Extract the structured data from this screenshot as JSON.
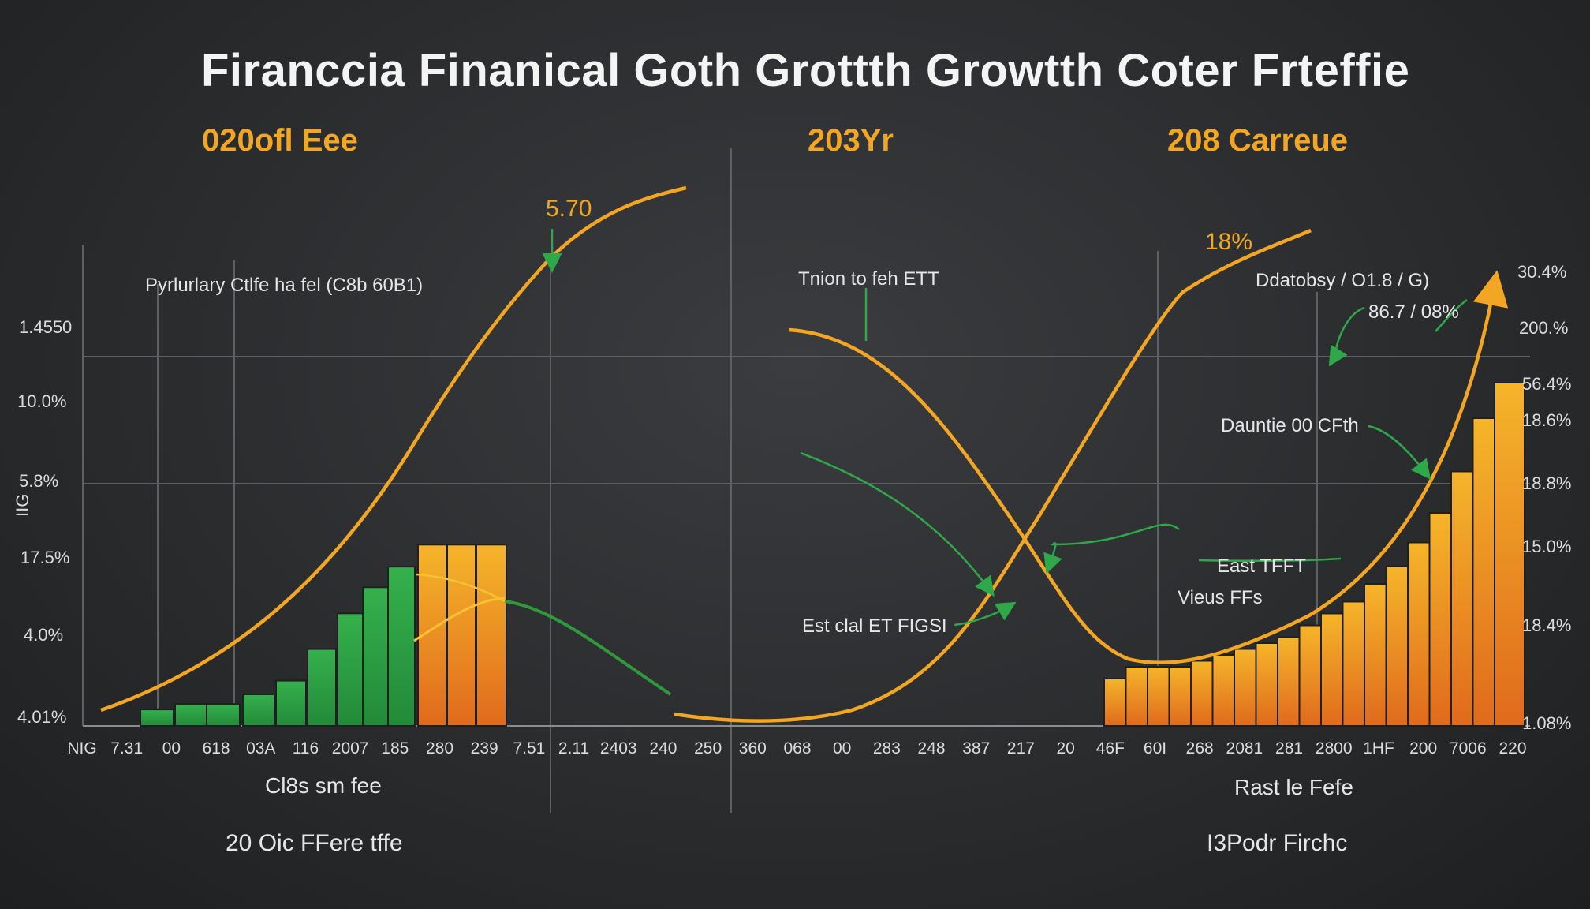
{
  "colors": {
    "orange": "#f2a623",
    "orange_dark": "#e06a1c",
    "green": "#2faa48",
    "green_line": "#2f9a3c",
    "grid": "#6a6c70",
    "text": "#e6e6e6"
  },
  "title": "Firanccia Finanical Goth Grottth Growtth Coter Frteffie",
  "section_headers": [
    "020ofl Eee",
    "203Yr",
    "208 Carreue"
  ],
  "top_value_labels": [
    "5.70",
    "18%"
  ],
  "annotations": [
    "Pyrlurlary Ctlfe ha fel (C8b 60B1)",
    "Tnion to feh ETT",
    "Ddatobsy / O1.8 / G)",
    "86.7 / 08%",
    "Dauntie 00 CFth",
    "East TFFT",
    "Vieus FFs",
    "Est clal ET FIGSI"
  ],
  "left_axis_labels": [
    "1.4550",
    "10.0%",
    "5.8%",
    "17.5%",
    "4.0%",
    "4.01%"
  ],
  "left_axis_side_label": "IIG",
  "right_axis_labels": [
    "30.4%",
    "200.%",
    "56.4%",
    "18.6%",
    "18.8%",
    "15.0%",
    "18.4%",
    "1.08%"
  ],
  "x_tick_labels": [
    "NIG",
    "7.31",
    "00",
    "618",
    "03A",
    "116",
    "2007",
    "185",
    "280",
    "239",
    "7.51",
    "2.11",
    "2403",
    "240",
    "250",
    "360",
    "068",
    "00",
    "283",
    "248",
    "387",
    "217",
    "20",
    "46F",
    "60I",
    "268",
    "2081",
    "281",
    "2800",
    "1HF",
    "200",
    "7006",
    "220"
  ],
  "footer_labels": [
    "Cl8s sm fee",
    "20 Oic FFere tffe",
    "Rast le Fefe",
    "I3Podr Firchc"
  ],
  "chart_data": {
    "type": "bar",
    "title": "Firanccia Finanical Goth Grottth Growtth Coter Frteffie",
    "grid": true,
    "left_bar_series": [
      {
        "name": "",
        "color": "green",
        "values": [
          1.2,
          1.6,
          1.6,
          2.3,
          3.3,
          5.6,
          8.2,
          10.1,
          11.6
        ]
      },
      {
        "name": "",
        "color": "orange",
        "values": [
          13.2,
          13.2,
          13.2
        ]
      }
    ],
    "right_bar_series": [
      {
        "name": "",
        "color": "orange",
        "values": [
          4,
          5,
          5,
          5,
          5.5,
          6,
          6.5,
          7,
          7.5,
          8.5,
          9.5,
          10.5,
          12,
          13.5,
          15.5,
          18,
          21.5,
          26,
          29
        ]
      }
    ],
    "curves": [
      {
        "name": "",
        "color": "orange",
        "points": [
          [
            0,
            10
          ],
          [
            15,
            30
          ],
          [
            30,
            75
          ],
          [
            45,
            100
          ]
        ]
      },
      {
        "name": "",
        "color": "orange",
        "points": [
          [
            45,
            62
          ],
          [
            55,
            35
          ],
          [
            62,
            12
          ],
          [
            75,
            3
          ],
          [
            85,
            15
          ],
          [
            95,
            60
          ],
          [
            100,
            85
          ]
        ]
      }
    ]
  }
}
